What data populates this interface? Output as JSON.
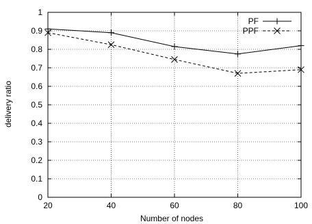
{
  "chart_data": {
    "type": "line",
    "xlabel": "Number of nodes",
    "ylabel": "delivery ratio",
    "x": [
      20,
      40,
      60,
      80,
      100
    ],
    "xlim": [
      20,
      100
    ],
    "ylim": [
      0,
      1
    ],
    "xticks": [
      "20",
      "40",
      "60",
      "80",
      "100"
    ],
    "yticks": [
      "0",
      "0.1",
      "0.2",
      "0.3",
      "0.4",
      "0.5",
      "0.6",
      "0.7",
      "0.8",
      "0.9",
      "1"
    ],
    "grid": true,
    "legend_position": "top-right",
    "series": [
      {
        "name": "PF",
        "values": [
          0.91,
          0.89,
          0.815,
          0.775,
          0.82
        ],
        "line_style": "solid",
        "marker": "plus",
        "color": "#000000"
      },
      {
        "name": "PPF",
        "values": [
          0.89,
          0.825,
          0.745,
          0.67,
          0.69
        ],
        "line_style": "dashed",
        "marker": "cross",
        "color": "#000000"
      }
    ]
  }
}
